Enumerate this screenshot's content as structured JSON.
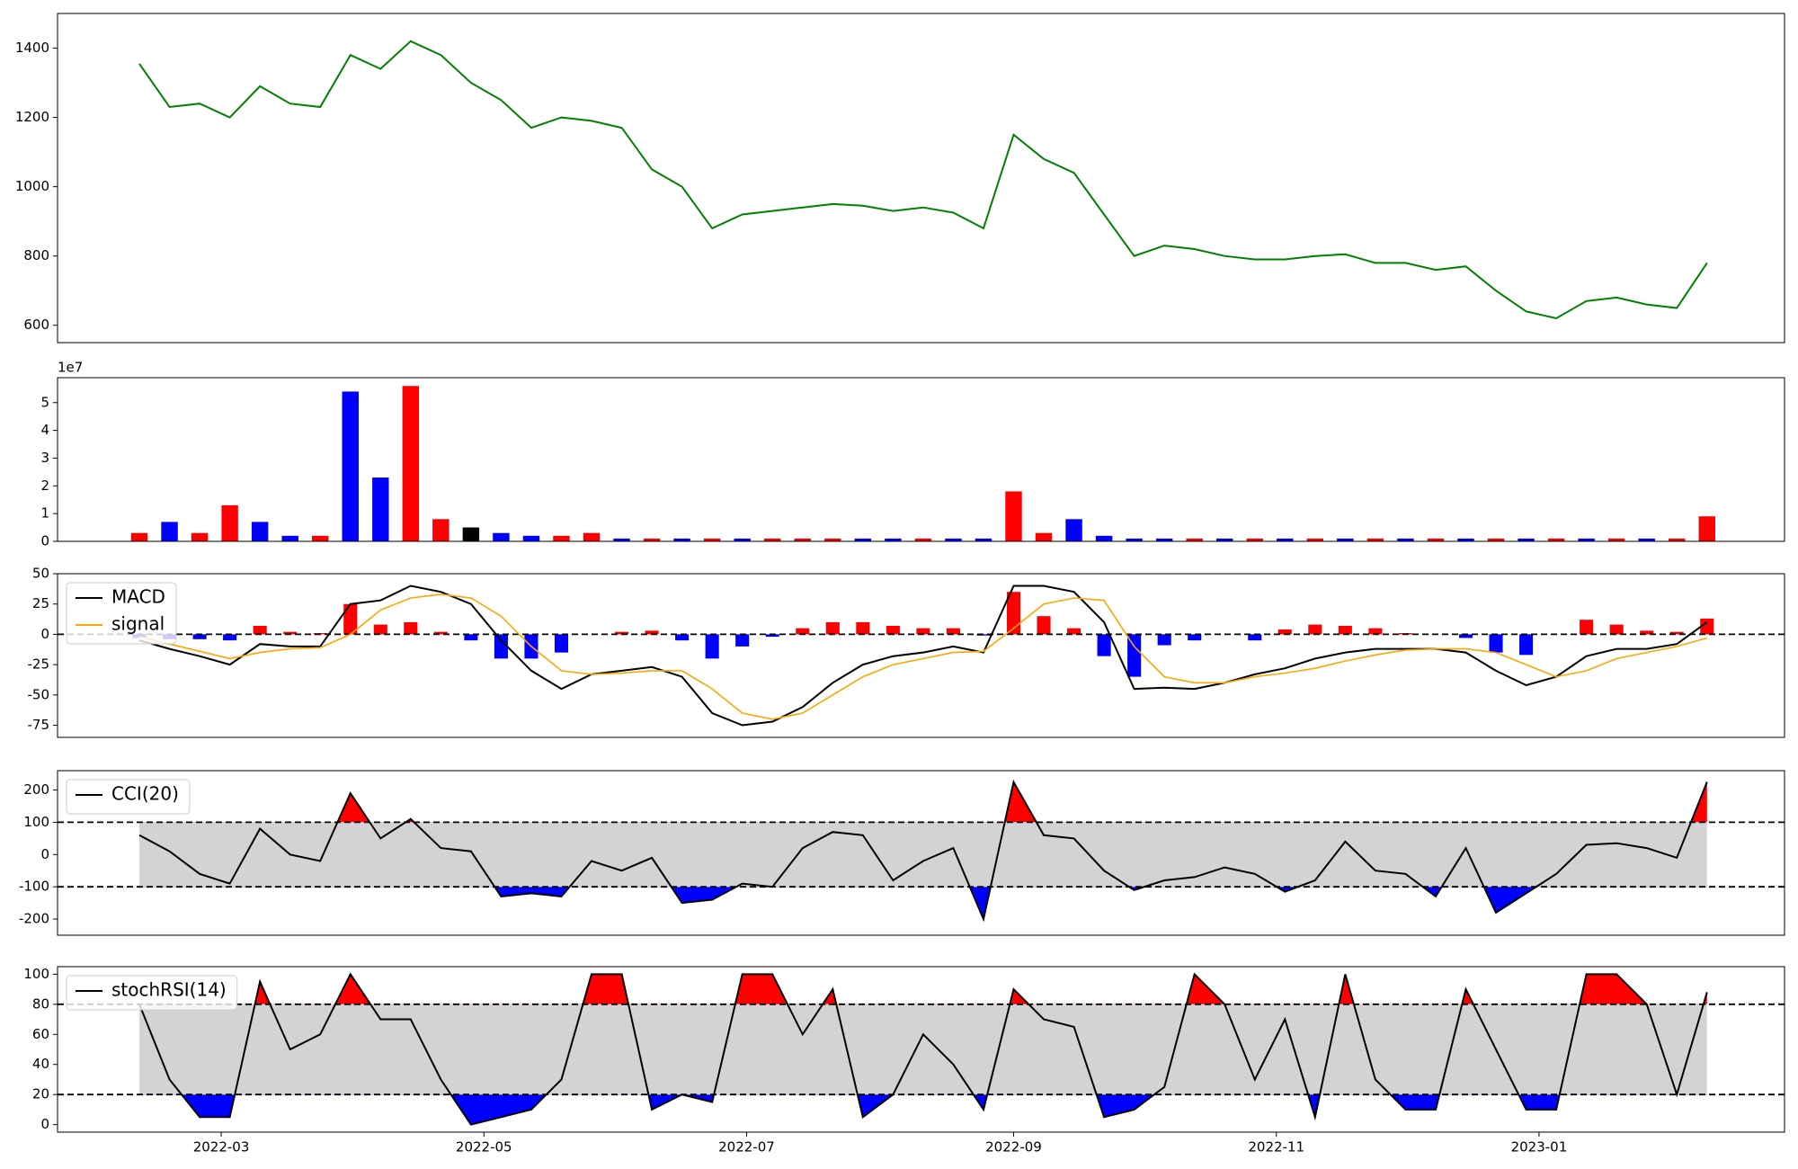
{
  "chart_data": [
    {
      "type": "line",
      "x": [
        19033,
        19040,
        19047,
        19054,
        19061,
        19068,
        19075,
        19082,
        19089,
        19096,
        19103,
        19110,
        19117,
        19124,
        19131,
        19138,
        19145,
        19152,
        19159,
        19166,
        19173,
        19180,
        19187,
        19194,
        19201,
        19208,
        19215,
        19222,
        19229,
        19236,
        19243,
        19250,
        19257,
        19264,
        19271,
        19278,
        19285,
        19292,
        19299,
        19306,
        19313,
        19320,
        19327,
        19334,
        19341,
        19348,
        19355,
        19362,
        19369,
        19376,
        19383,
        19390,
        19397
      ],
      "series": [
        {
          "color": "green",
          "values": [
            1355,
            1230,
            1240,
            1200,
            1290,
            1240,
            1230,
            1380,
            1340,
            1420,
            1380,
            1300,
            1250,
            1170,
            1200,
            1190,
            1170,
            1050,
            1000,
            880,
            920,
            930,
            940,
            950,
            945,
            930,
            940,
            925,
            880,
            1150,
            1080,
            1040,
            920,
            800,
            830,
            820,
            800,
            790,
            790,
            800,
            805,
            780,
            780,
            760,
            770,
            700,
            640,
            620,
            670,
            680,
            660,
            650,
            780
          ]
        }
      ],
      "xlim": [
        19014,
        19415
      ],
      "ylim": [
        550,
        1500
      ],
      "yticks": [
        600,
        800,
        1000,
        1200,
        1400
      ]
    },
    {
      "type": "bar",
      "x": [
        19033,
        19040,
        19047,
        19054,
        19061,
        19068,
        19075,
        19082,
        19089,
        19096,
        19103,
        19110,
        19117,
        19124,
        19131,
        19138,
        19145,
        19152,
        19159,
        19166,
        19173,
        19180,
        19187,
        19194,
        19201,
        19208,
        19215,
        19222,
        19229,
        19236,
        19243,
        19250,
        19257,
        19264,
        19271,
        19278,
        19285,
        19292,
        19299,
        19306,
        19313,
        19320,
        19327,
        19334,
        19341,
        19348,
        19355,
        19362,
        19369,
        19376,
        19383,
        19390,
        19397
      ],
      "values": [
        0.3,
        0.7,
        0.3,
        1.3,
        0.7,
        0.2,
        0.2,
        5.4,
        2.3,
        5.6,
        0.8,
        0.5,
        0.3,
        0.2,
        0.2,
        0.3,
        0.1,
        0.1,
        0.1,
        0.1,
        0.1,
        0.1,
        0.1,
        0.1,
        0.1,
        0.1,
        0.1,
        0.1,
        0.1,
        1.8,
        0.3,
        0.8,
        0.2,
        0.1,
        0.1,
        0.1,
        0.1,
        0.1,
        0.1,
        0.1,
        0.1,
        0.1,
        0.1,
        0.1,
        0.1,
        0.1,
        0.1,
        0.1,
        0.1,
        0.1,
        0.1,
        0.1,
        0.9
      ],
      "colors": [
        "red",
        "blue",
        "red",
        "red",
        "blue",
        "blue",
        "red",
        "blue",
        "blue",
        "red",
        "red",
        "black",
        "blue",
        "blue",
        "red",
        "red",
        "blue",
        "red",
        "blue",
        "red",
        "blue",
        "red",
        "red",
        "red",
        "blue",
        "blue",
        "red",
        "blue",
        "blue",
        "red",
        "red",
        "blue",
        "blue",
        "blue",
        "blue",
        "red",
        "blue",
        "red",
        "blue",
        "red",
        "blue",
        "red",
        "blue",
        "red",
        "blue",
        "red",
        "blue",
        "red",
        "blue",
        "red",
        "blue",
        "red",
        "red"
      ],
      "offset_label": "1e7",
      "xlim": [
        19014,
        19415
      ],
      "ylim": [
        0,
        5.9
      ],
      "yticks": [
        0,
        1,
        2,
        3,
        4,
        5
      ]
    },
    {
      "type": "macd",
      "x": [
        19033,
        19040,
        19047,
        19054,
        19061,
        19068,
        19075,
        19082,
        19089,
        19096,
        19103,
        19110,
        19117,
        19124,
        19131,
        19138,
        19145,
        19152,
        19159,
        19166,
        19173,
        19180,
        19187,
        19194,
        19201,
        19208,
        19215,
        19222,
        19229,
        19236,
        19243,
        19250,
        19257,
        19264,
        19271,
        19278,
        19285,
        19292,
        19299,
        19306,
        19313,
        19320,
        19327,
        19334,
        19341,
        19348,
        19355,
        19362,
        19369,
        19376,
        19383,
        19390,
        19397
      ],
      "series": [
        {
          "name": "MACD",
          "color": "black",
          "values": [
            -5,
            -12,
            -18,
            -25,
            -8,
            -10,
            -10,
            25,
            28,
            40,
            35,
            25,
            -5,
            -30,
            -45,
            -33,
            -30,
            -27,
            -35,
            -65,
            -75,
            -72,
            -60,
            -40,
            -25,
            -18,
            -15,
            -10,
            -15,
            40,
            40,
            35,
            10,
            -45,
            -44,
            -45,
            -40,
            -33,
            -28,
            -20,
            -15,
            -12,
            -12,
            -12,
            -15,
            -30,
            -42,
            -35,
            -18,
            -12,
            -12,
            -8,
            10
          ]
        },
        {
          "name": "signal",
          "color": "orange",
          "values": [
            -2,
            -8,
            -14,
            -20,
            -15,
            -12,
            -11,
            0,
            20,
            30,
            33,
            30,
            15,
            -10,
            -30,
            -33,
            -32,
            -30,
            -30,
            -45,
            -65,
            -70,
            -65,
            -50,
            -35,
            -25,
            -20,
            -15,
            -14,
            5,
            25,
            30,
            28,
            -10,
            -35,
            -40,
            -40,
            -35,
            -32,
            -28,
            -22,
            -17,
            -13,
            -12,
            -12,
            -15,
            -25,
            -35,
            -30,
            -20,
            -15,
            -10,
            -3
          ]
        }
      ],
      "histogram": {
        "values": [
          -3,
          -4,
          -4,
          -5,
          7,
          2,
          1,
          25,
          8,
          10,
          2,
          -5,
          -20,
          -20,
          -15,
          0,
          2,
          3,
          -5,
          -20,
          -10,
          -2,
          5,
          10,
          10,
          7,
          5,
          5,
          -1,
          35,
          15,
          5,
          -18,
          -35,
          -9,
          -5,
          0,
          -5,
          4,
          8,
          7,
          5,
          1,
          0,
          -3,
          -15,
          -17,
          0,
          12,
          8,
          3,
          2,
          13
        ],
        "pos_color": "red",
        "neg_color": "blue"
      },
      "hlines": [
        0
      ],
      "legend": "upper left",
      "xlim": [
        19014,
        19415
      ],
      "ylim": [
        -85,
        50
      ],
      "yticks": [
        -75,
        -50,
        -25,
        0,
        25,
        50
      ]
    },
    {
      "type": "band",
      "x": [
        19033,
        19040,
        19047,
        19054,
        19061,
        19068,
        19075,
        19082,
        19089,
        19096,
        19103,
        19110,
        19117,
        19124,
        19131,
        19138,
        19145,
        19152,
        19159,
        19166,
        19173,
        19180,
        19187,
        19194,
        19201,
        19208,
        19215,
        19222,
        19229,
        19236,
        19243,
        19250,
        19257,
        19264,
        19271,
        19278,
        19285,
        19292,
        19299,
        19306,
        19313,
        19320,
        19327,
        19334,
        19341,
        19348,
        19355,
        19362,
        19369,
        19376,
        19383,
        19390,
        19397
      ],
      "series": [
        {
          "name": "CCI(20)",
          "color": "black",
          "values": [
            60,
            10,
            -60,
            -90,
            80,
            0,
            -20,
            190,
            50,
            110,
            20,
            10,
            -130,
            -120,
            -130,
            -20,
            -50,
            -10,
            -150,
            -140,
            -90,
            -100,
            20,
            70,
            60,
            -80,
            -20,
            20,
            -200,
            225,
            60,
            50,
            -50,
            -110,
            -80,
            -70,
            -40,
            -60,
            -115,
            -80,
            40,
            -50,
            -60,
            -130,
            20,
            -180,
            -120,
            -60,
            30,
            35,
            20,
            -10,
            225
          ]
        }
      ],
      "hlines": [
        -100,
        100
      ],
      "band_color": "#d3d3d3",
      "above_color": "red",
      "below_color": "blue",
      "legend": "upper left",
      "xlim": [
        19014,
        19415
      ],
      "ylim": [
        -250,
        260
      ],
      "yticks": [
        -200,
        -100,
        0,
        100,
        200
      ]
    },
    {
      "type": "band",
      "x": [
        19033,
        19040,
        19047,
        19054,
        19061,
        19068,
        19075,
        19082,
        19089,
        19096,
        19103,
        19110,
        19117,
        19124,
        19131,
        19138,
        19145,
        19152,
        19159,
        19166,
        19173,
        19180,
        19187,
        19194,
        19201,
        19208,
        19215,
        19222,
        19229,
        19236,
        19243,
        19250,
        19257,
        19264,
        19271,
        19278,
        19285,
        19292,
        19299,
        19306,
        19313,
        19320,
        19327,
        19334,
        19341,
        19348,
        19355,
        19362,
        19369,
        19376,
        19383,
        19390,
        19397
      ],
      "series": [
        {
          "name": "stochRSI(14)",
          "color": "black",
          "values": [
            80,
            30,
            5,
            5,
            95,
            50,
            60,
            100,
            70,
            70,
            30,
            0,
            5,
            10,
            30,
            100,
            100,
            10,
            20,
            15,
            100,
            100,
            60,
            90,
            5,
            20,
            60,
            40,
            10,
            90,
            70,
            65,
            5,
            10,
            25,
            100,
            80,
            30,
            70,
            5,
            100,
            30,
            10,
            10,
            90,
            50,
            10,
            10,
            100,
            100,
            80,
            20,
            88
          ]
        }
      ],
      "hlines": [
        20,
        80
      ],
      "band_color": "#d3d3d3",
      "above_color": "red",
      "below_color": "blue",
      "legend": "upper left",
      "xlim": [
        19014,
        19415
      ],
      "ylim": [
        -5,
        105
      ],
      "yticks": [
        0,
        20,
        40,
        60,
        80,
        100
      ],
      "xticks": [
        {
          "value": 19052,
          "label": "2022-03"
        },
        {
          "value": 19113,
          "label": "2022-05"
        },
        {
          "value": 19174,
          "label": "2022-07"
        },
        {
          "value": 19236,
          "label": "2022-09"
        },
        {
          "value": 19297,
          "label": "2022-11"
        },
        {
          "value": 19358,
          "label": "2023-01"
        }
      ]
    }
  ]
}
